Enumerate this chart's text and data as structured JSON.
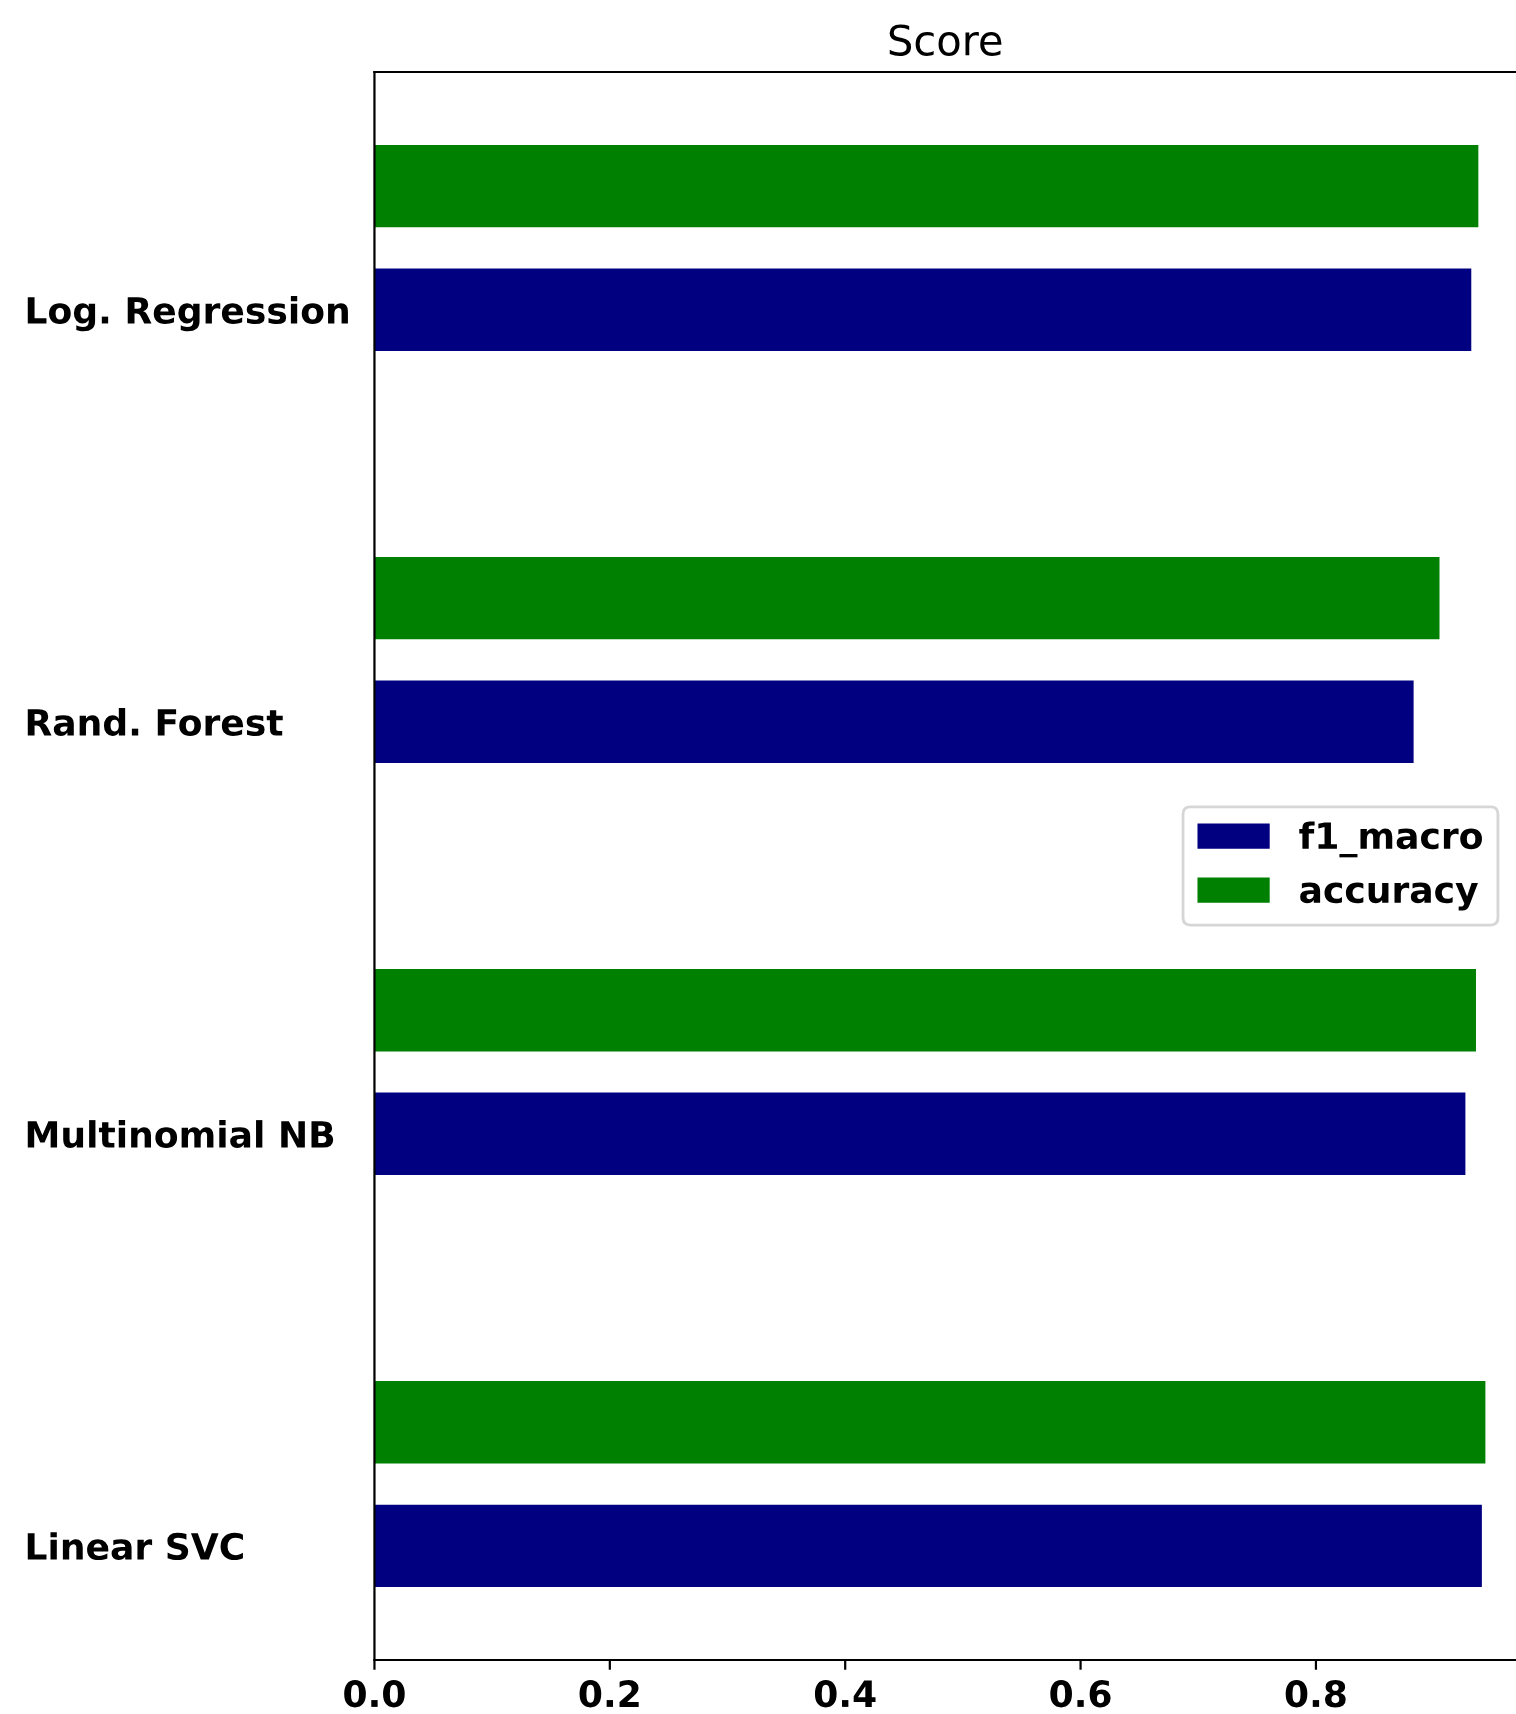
{
  "chart_data": {
    "type": "bar",
    "orientation": "horizontal",
    "title": "Score",
    "categories": [
      "Log. Regression",
      "Rand. Forest",
      "Multinomial NB",
      "Linear SVC"
    ],
    "series": [
      {
        "name": "f1_macro",
        "color": "#000080",
        "values": [
          0.932,
          0.883,
          0.927,
          0.941
        ]
      },
      {
        "name": "accuracy",
        "color": "#008000",
        "values": [
          0.938,
          0.905,
          0.936,
          0.944
        ]
      }
    ],
    "xlim": [
      0,
      0.97
    ],
    "xticks": [
      {
        "value": 0,
        "label": "0.0"
      },
      0.2,
      0.4,
      0.6,
      0.8
    ],
    "grid": false,
    "legend": "right"
  }
}
